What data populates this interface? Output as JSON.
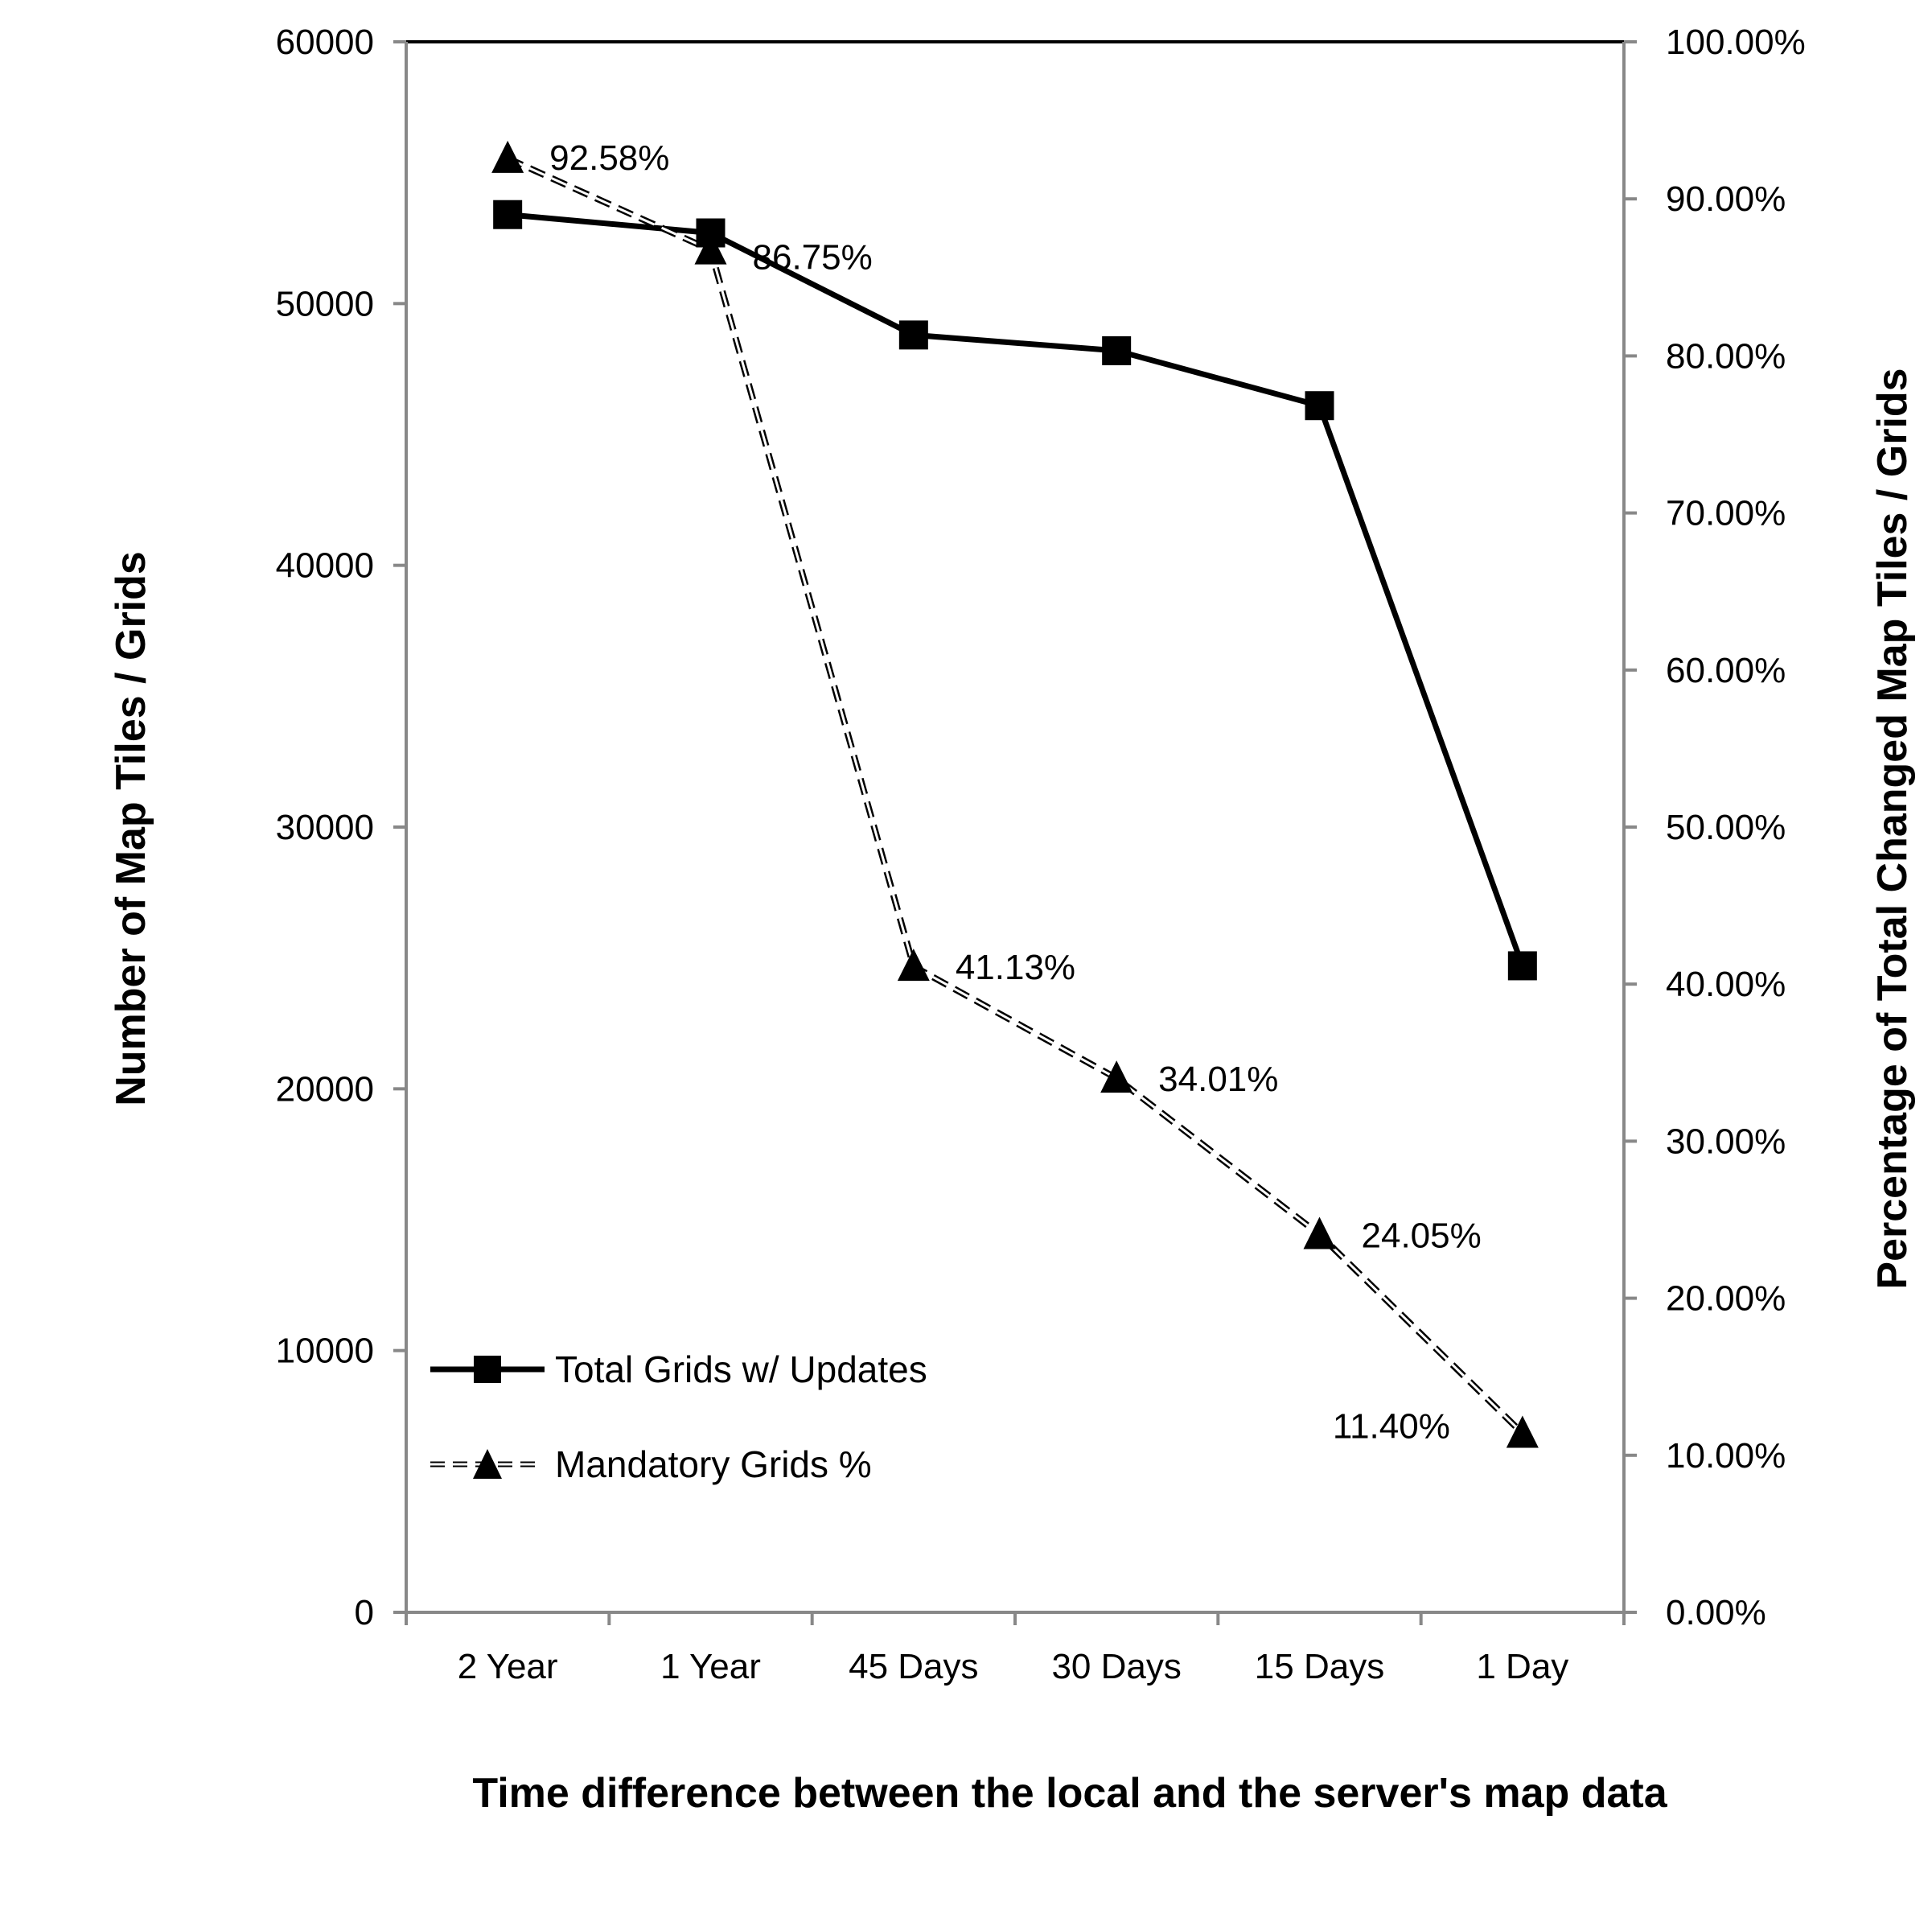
{
  "chart_data": {
    "type": "line",
    "xlabel": "Time difference between the local and the server's map data",
    "ylabel_left": "Number of Map Tiles / Grids",
    "ylabel_right": "Percentage of Total Changed Map Tiles / Grids",
    "categories": [
      "2 Year",
      "1 Year",
      "45 Days",
      "30 Days",
      "15 Days",
      "1 Day"
    ],
    "ylim_left": [
      0,
      60000
    ],
    "ylim_right": [
      0,
      100
    ],
    "yticks_left": [
      "0",
      "10000",
      "20000",
      "30000",
      "40000",
      "50000",
      "60000"
    ],
    "yticks_right": [
      "0.00%",
      "10.00%",
      "20.00%",
      "30.00%",
      "40.00%",
      "50.00%",
      "60.00%",
      "70.00%",
      "80.00%",
      "90.00%",
      "100.00%"
    ],
    "grid": false,
    "legend_position": "bottom-left",
    "series": [
      {
        "name": "Total Grids w/ Updates",
        "axis": "left",
        "marker": "square",
        "line_style": "solid",
        "values": [
          53400,
          52700,
          48800,
          48200,
          46100,
          24700
        ]
      },
      {
        "name": "Mandatory Grids %",
        "axis": "right",
        "marker": "triangle",
        "line_style": "dashed",
        "values": [
          92.58,
          86.75,
          41.13,
          34.01,
          24.05,
          11.4
        ],
        "data_labels": [
          "92.58%",
          "86.75%",
          "41.13%",
          "34.01%",
          "24.05%",
          "11.40%"
        ]
      }
    ]
  }
}
